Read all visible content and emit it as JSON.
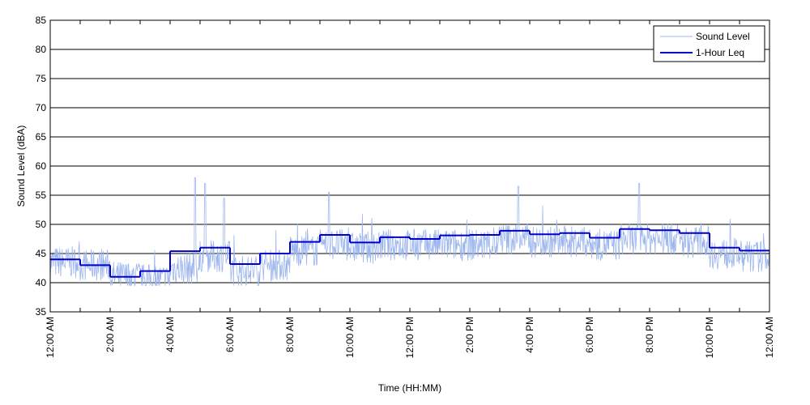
{
  "chart_data": {
    "type": "line",
    "title": "",
    "xlabel": "Time (HH:MM)",
    "ylabel": "Sound Level (dBA)",
    "ylim": [
      35,
      85
    ],
    "xlim": [
      0,
      24
    ],
    "yticks": [
      35,
      40,
      45,
      50,
      55,
      60,
      65,
      70,
      75,
      80,
      85
    ],
    "xtick_hours": [
      0,
      2,
      4,
      6,
      8,
      10,
      12,
      14,
      16,
      18,
      20,
      22,
      24
    ],
    "xtick_labels": [
      "12:00 AM",
      "2:00 AM",
      "4:00 AM",
      "6:00 AM",
      "8:00 AM",
      "10:00 AM",
      "12:00 PM",
      "2:00 PM",
      "4:00 PM",
      "6:00 PM",
      "8:00 PM",
      "10:00 PM",
      "12:00 AM"
    ],
    "grid": "horizontal",
    "legend_position": "top-right",
    "series": [
      {
        "name": "Sound Level",
        "color": "#9db6ee",
        "style": "thin line, one-minute samples",
        "hourly_mean": [
          43.5,
          43,
          41,
          40.5,
          42.5,
          44.5,
          42,
          43,
          45.5,
          46.5,
          46,
          46.5,
          46.5,
          46.5,
          46.5,
          47.5,
          47,
          47,
          46.5,
          47.5,
          47.5,
          47,
          45,
          44.5
        ],
        "peaks": [
          {
            "x": 4.83,
            "y": 58
          },
          {
            "x": 5.17,
            "y": 57
          },
          {
            "x": 5.8,
            "y": 54.5
          },
          {
            "x": 9.3,
            "y": 55.5
          },
          {
            "x": 15.62,
            "y": 56.5
          },
          {
            "x": 19.65,
            "y": 57
          }
        ]
      },
      {
        "name": "1-Hour Leq",
        "color": "#0000c8",
        "style": "thick step line",
        "x": [
          0,
          1,
          2,
          3,
          4,
          5,
          6,
          7,
          8,
          9,
          10,
          11,
          12,
          13,
          14,
          15,
          16,
          17,
          18,
          19,
          20,
          21,
          22,
          23
        ],
        "values": [
          44,
          43,
          41,
          42,
          45.4,
          46,
          43.2,
          45,
          47,
          48.2,
          46.9,
          47.8,
          47.5,
          48.1,
          48.2,
          48.9,
          48.3,
          48.5,
          47.7,
          49.2,
          49,
          48.5,
          46,
          45.5
        ]
      }
    ]
  }
}
